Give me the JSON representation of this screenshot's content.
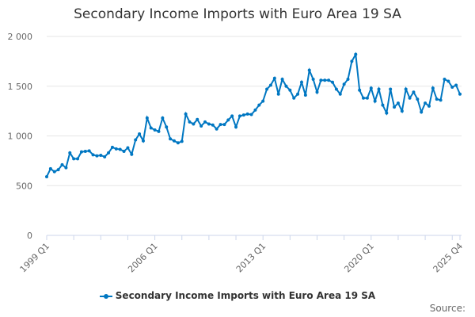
{
  "chart_data": {
    "type": "line",
    "title": "Secondary Income Imports with Euro Area 19 SA",
    "xlabel": "",
    "ylabel": "",
    "ylim": [
      0,
      2000
    ],
    "yticks": [
      0,
      500,
      1000,
      1500,
      2000
    ],
    "ytick_labels": [
      "0",
      "500",
      "1 000",
      "1 500",
      "2 000"
    ],
    "xtick_labels": [
      "1999 Q1",
      "2006 Q1",
      "2013 Q1",
      "2020 Q1",
      "2025 Q4"
    ],
    "xtick_indices": [
      0,
      28,
      56,
      84,
      107
    ],
    "grid": true,
    "legend_position": "bottom",
    "color": "#0077c2",
    "series": [
      {
        "name": "Secondary Income Imports with Euro Area 19 SA",
        "values": [
          590,
          670,
          640,
          660,
          710,
          680,
          830,
          770,
          770,
          840,
          845,
          850,
          810,
          800,
          805,
          790,
          830,
          885,
          870,
          865,
          845,
          880,
          815,
          960,
          1020,
          950,
          1180,
          1080,
          1060,
          1045,
          1180,
          1090,
          970,
          950,
          930,
          945,
          1220,
          1140,
          1120,
          1165,
          1100,
          1140,
          1120,
          1110,
          1070,
          1115,
          1115,
          1160,
          1200,
          1090,
          1200,
          1210,
          1220,
          1215,
          1260,
          1310,
          1350,
          1470,
          1510,
          1580,
          1420,
          1570,
          1500,
          1460,
          1380,
          1420,
          1540,
          1410,
          1660,
          1570,
          1440,
          1560,
          1560,
          1560,
          1540,
          1470,
          1420,
          1520,
          1570,
          1750,
          1820,
          1460,
          1380,
          1380,
          1480,
          1350,
          1470,
          1310,
          1230,
          1470,
          1290,
          1330,
          1250,
          1470,
          1380,
          1440,
          1370,
          1240,
          1330,
          1300,
          1480,
          1370,
          1360,
          1570,
          1550,
          1490,
          1510,
          1420
        ]
      }
    ]
  },
  "source_label": "Source:"
}
